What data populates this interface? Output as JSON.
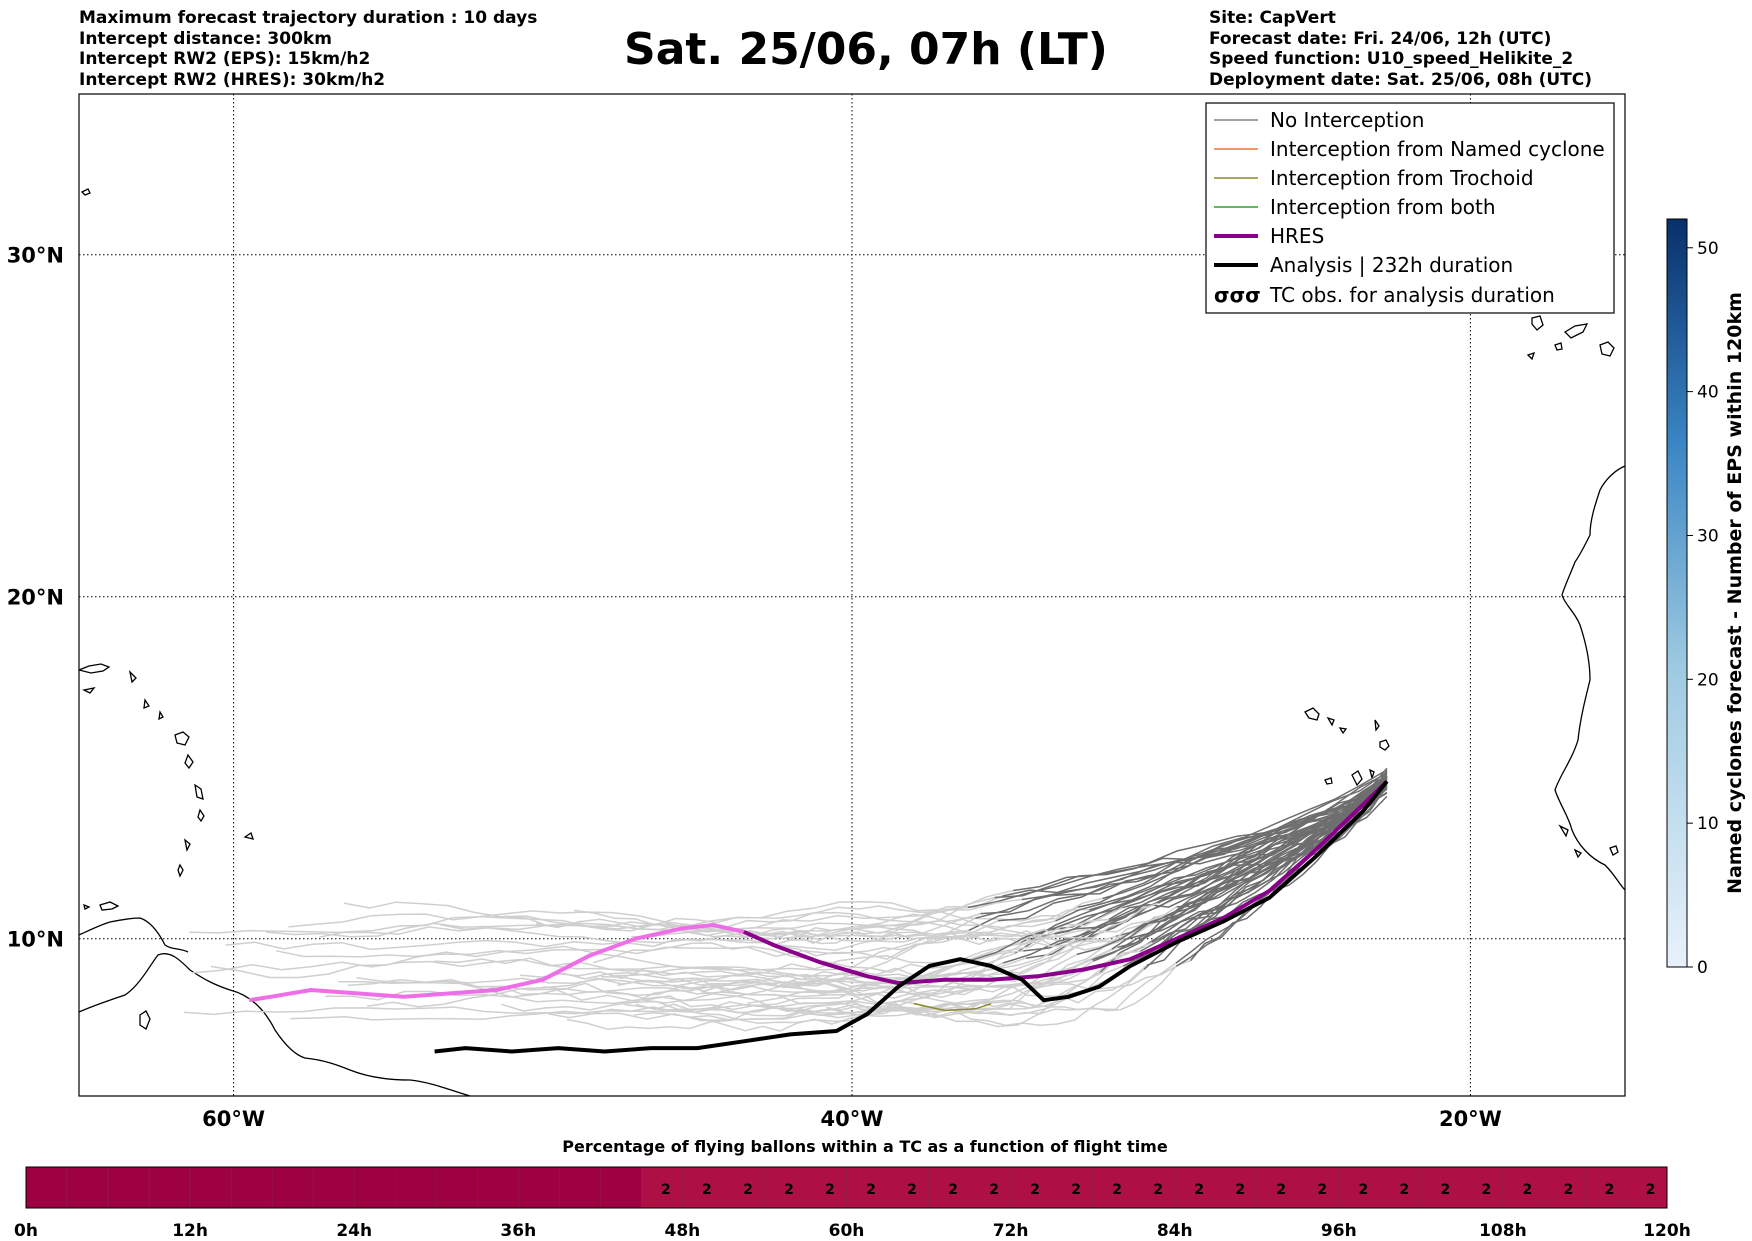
{
  "header_left": [
    "Maximum forecast trajectory duration : 10 days",
    "Intercept distance: 300km",
    "Intercept RW2 (EPS):  15km/h2",
    "Intercept RW2 (HRES): 30km/h2"
  ],
  "header_right": [
    "Site: CapVert",
    "Forecast date: Fri. 24/06, 12h (UTC)",
    "Speed function: U10_speed_Helikite_2",
    "Deployment date: Sat. 25/06, 08h (UTC)"
  ],
  "main_title": "Sat. 25/06, 07h (LT)",
  "map": {
    "lat_labels": [
      "30°N",
      "20°N",
      "10°N"
    ],
    "lat_values": [
      30,
      20,
      10
    ],
    "lon_labels": [
      "60°W",
      "40°W",
      "20°W"
    ],
    "lon_values": [
      -60,
      -40,
      -20
    ],
    "lon_range": [
      -65,
      -15
    ],
    "lat_range": [
      5.4,
      34.7
    ]
  },
  "legend": {
    "items": [
      {
        "label": "No Interception",
        "color": "#808080",
        "width": 1.5
      },
      {
        "label": "Interception from Named cyclone",
        "color": "#f4703c",
        "width": 1.5
      },
      {
        "label": "Interception from Trochoid",
        "color": "#8b8b2a",
        "width": 1.5
      },
      {
        "label": "Interception from both",
        "color": "#2ca02c",
        "width": 1.5
      },
      {
        "label": "HRES",
        "color": "#8b008b",
        "width": 4
      },
      {
        "label": "Analysis | 232h duration",
        "color": "#000000",
        "width": 4
      },
      {
        "label": "TC obs. for analysis duration",
        "symbol": "σσσ"
      }
    ]
  },
  "colorbar": {
    "label": "Named cyclones forecast - Number of EPS within 120km",
    "ticks": [
      0,
      10,
      20,
      30,
      40,
      50
    ],
    "range": [
      0,
      52
    ],
    "color_low": "#e3eef9",
    "color_high": "#08306b"
  },
  "timebar": {
    "title": "Percentage of flying ballons within a TC as a function of flight time",
    "tick_labels": [
      "0h",
      "12h",
      "24h",
      "36h",
      "48h",
      "60h",
      "72h",
      "84h",
      "96h",
      "108h",
      "120h"
    ],
    "range_hours": [
      0,
      120
    ],
    "cell_hours": 3,
    "value_start_hours": 45,
    "value_text": "2",
    "color_empty": "#9e0142",
    "color_value": "#ae1045"
  },
  "tracks": {
    "hres": [
      [
        -59.5,
        8.2
      ],
      [
        -58.8,
        8.3
      ],
      [
        -57.5,
        8.5
      ],
      [
        -56,
        8.4
      ],
      [
        -54.5,
        8.3
      ],
      [
        -53,
        8.4
      ],
      [
        -51.5,
        8.5
      ],
      [
        -50,
        8.8
      ],
      [
        -48.5,
        9.5
      ],
      [
        -47,
        10.0
      ],
      [
        -45.5,
        10.3
      ],
      [
        -44.5,
        10.4
      ],
      [
        -43.5,
        10.2
      ],
      [
        -42.5,
        9.8
      ],
      [
        -41,
        9.3
      ],
      [
        -39.5,
        8.9
      ],
      [
        -38.5,
        8.7
      ],
      [
        -37,
        8.8
      ],
      [
        -35.5,
        8.8
      ],
      [
        -34,
        8.9
      ],
      [
        -32.5,
        9.1
      ],
      [
        -31,
        9.4
      ],
      [
        -29.5,
        10.0
      ],
      [
        -28,
        10.6
      ],
      [
        -26.5,
        11.4
      ],
      [
        -25,
        12.6
      ],
      [
        -23.5,
        13.9
      ],
      [
        -22.7,
        14.6
      ]
    ],
    "analysis": [
      [
        -53.5,
        6.7
      ],
      [
        -52.5,
        6.8
      ],
      [
        -51,
        6.7
      ],
      [
        -49.5,
        6.8
      ],
      [
        -48,
        6.7
      ],
      [
        -46.5,
        6.8
      ],
      [
        -45,
        6.8
      ],
      [
        -43.5,
        7.0
      ],
      [
        -42,
        7.2
      ],
      [
        -40.5,
        7.3
      ],
      [
        -39.5,
        7.8
      ],
      [
        -38.5,
        8.6
      ],
      [
        -37.5,
        9.2
      ],
      [
        -36.5,
        9.4
      ],
      [
        -35.5,
        9.2
      ],
      [
        -34.5,
        8.8
      ],
      [
        -33.8,
        8.2
      ],
      [
        -33,
        8.3
      ],
      [
        -32,
        8.6
      ],
      [
        -31,
        9.2
      ],
      [
        -29.5,
        9.9
      ],
      [
        -28,
        10.5
      ],
      [
        -26.5,
        11.2
      ],
      [
        -25,
        12.4
      ],
      [
        -23.5,
        13.7
      ],
      [
        -22.7,
        14.6
      ]
    ],
    "eps_count": 50
  }
}
